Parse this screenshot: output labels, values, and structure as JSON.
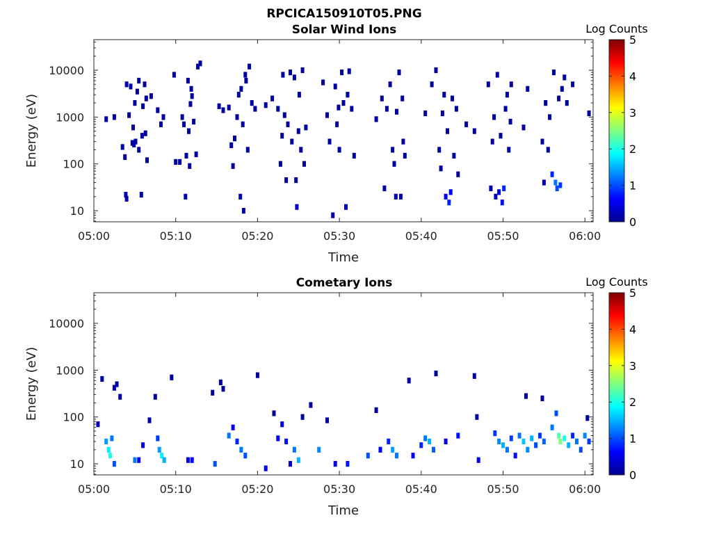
{
  "figure": {
    "title": "RPCICA150910T05.PNG"
  },
  "chart_data": [
    {
      "type": "heatmap",
      "title": "Solar Wind Ions",
      "xlabel": "Time",
      "ylabel": "Energy (eV)",
      "yscale": "log",
      "x_tick_labels": [
        "05:00",
        "05:10",
        "05:20",
        "05:30",
        "05:40",
        "05:50",
        "06:00"
      ],
      "y_tick_labels": [
        "10",
        "100",
        "1000",
        "10000"
      ],
      "colorbar": {
        "label": "Log Counts",
        "ticks": [
          "0",
          "1",
          "2",
          "3",
          "4",
          "5"
        ],
        "colormap": "jet",
        "range": [
          0,
          5
        ]
      },
      "cells": [
        [
          1.5,
          900,
          0.1
        ],
        [
          2.5,
          1000,
          0.1
        ],
        [
          3.5,
          230,
          0.1
        ],
        [
          3.8,
          140,
          0.1
        ],
        [
          3.9,
          22,
          0.2
        ],
        [
          4.0,
          18,
          0.1
        ],
        [
          4.0,
          5000,
          0.1
        ],
        [
          4.3,
          1100,
          0.1
        ],
        [
          4.5,
          4500,
          0.1
        ],
        [
          4.7,
          280,
          0.1
        ],
        [
          4.8,
          600,
          0.1
        ],
        [
          4.9,
          260,
          0.1
        ],
        [
          5.0,
          2000,
          0.1
        ],
        [
          5.1,
          300,
          0.1
        ],
        [
          5.3,
          3500,
          0.1
        ],
        [
          5.5,
          200,
          0.1
        ],
        [
          5.5,
          6000,
          0.1
        ],
        [
          5.8,
          22,
          0.2
        ],
        [
          5.9,
          400,
          0.1
        ],
        [
          6.0,
          1700,
          0.1
        ],
        [
          6.2,
          5000,
          0.1
        ],
        [
          6.3,
          450,
          0.1
        ],
        [
          6.4,
          2500,
          0.1
        ],
        [
          6.5,
          120,
          0.1
        ],
        [
          7.0,
          2800,
          0.1
        ],
        [
          7.8,
          1400,
          0.1
        ],
        [
          8.2,
          700,
          0.1
        ],
        [
          8.5,
          1000,
          0.1
        ],
        [
          9.8,
          8000,
          0.1
        ],
        [
          10.0,
          110,
          0.1
        ],
        [
          10.5,
          110,
          0.1
        ],
        [
          10.8,
          1000,
          0.1
        ],
        [
          11.0,
          700,
          0.1
        ],
        [
          11.2,
          20,
          0.2
        ],
        [
          11.3,
          150,
          0.1
        ],
        [
          11.5,
          6000,
          0.1
        ],
        [
          11.6,
          500,
          0.1
        ],
        [
          11.7,
          90,
          0.1
        ],
        [
          11.8,
          1900,
          0.1
        ],
        [
          11.9,
          4000,
          0.1
        ],
        [
          12.0,
          2800,
          0.1
        ],
        [
          12.2,
          800,
          0.1
        ],
        [
          12.5,
          160,
          0.1
        ],
        [
          12.7,
          12000,
          0.1
        ],
        [
          13.0,
          14000,
          0.1
        ],
        [
          15.3,
          1700,
          0.1
        ],
        [
          15.8,
          1400,
          0.1
        ],
        [
          16.5,
          1600,
          0.1
        ],
        [
          16.8,
          250,
          0.1
        ],
        [
          17.0,
          90,
          0.1
        ],
        [
          17.2,
          350,
          0.1
        ],
        [
          17.5,
          1000,
          0.1
        ],
        [
          17.7,
          3000,
          0.1
        ],
        [
          17.9,
          20,
          0.2
        ],
        [
          18.0,
          4000,
          0.1
        ],
        [
          18.2,
          700,
          0.1
        ],
        [
          18.3,
          10,
          0.2
        ],
        [
          18.5,
          8000,
          0.1
        ],
        [
          18.6,
          6000,
          0.1
        ],
        [
          18.8,
          200,
          0.1
        ],
        [
          19.0,
          12000,
          0.1
        ],
        [
          19.3,
          2000,
          0.1
        ],
        [
          19.7,
          1500,
          0.1
        ],
        [
          21.0,
          1800,
          0.1
        ],
        [
          21.8,
          2500,
          0.1
        ],
        [
          22.5,
          1500,
          0.1
        ],
        [
          22.8,
          100,
          0.1
        ],
        [
          23.0,
          400,
          0.1
        ],
        [
          23.1,
          8000,
          0.1
        ],
        [
          23.3,
          1100,
          0.1
        ],
        [
          23.5,
          45,
          0.1
        ],
        [
          23.7,
          700,
          0.1
        ],
        [
          24.0,
          9000,
          0.1
        ],
        [
          24.2,
          300,
          0.1
        ],
        [
          24.5,
          7000,
          0.1
        ],
        [
          24.7,
          45,
          0.1
        ],
        [
          24.8,
          12,
          0.3
        ],
        [
          25.0,
          500,
          0.1
        ],
        [
          25.1,
          3000,
          0.1
        ],
        [
          25.3,
          200,
          0.1
        ],
        [
          25.5,
          10000,
          0.1
        ],
        [
          25.7,
          100,
          0.1
        ],
        [
          25.9,
          600,
          0.1
        ],
        [
          28.0,
          5500,
          0.1
        ],
        [
          28.5,
          1100,
          0.1
        ],
        [
          28.8,
          300,
          0.1
        ],
        [
          29.2,
          8,
          0.2
        ],
        [
          29.5,
          4500,
          0.1
        ],
        [
          29.7,
          700,
          0.1
        ],
        [
          29.9,
          1600,
          0.1
        ],
        [
          30.0,
          200,
          0.1
        ],
        [
          30.3,
          9000,
          0.1
        ],
        [
          30.5,
          2000,
          0.1
        ],
        [
          30.8,
          12,
          0.3
        ],
        [
          31.0,
          3000,
          0.1
        ],
        [
          31.2,
          9500,
          0.1
        ],
        [
          31.5,
          1500,
          0.1
        ],
        [
          31.8,
          150,
          0.1
        ],
        [
          34.5,
          900,
          0.1
        ],
        [
          35.2,
          2500,
          0.1
        ],
        [
          35.5,
          30,
          0.1
        ],
        [
          35.8,
          1500,
          0.1
        ],
        [
          36.2,
          5000,
          0.1
        ],
        [
          36.5,
          200,
          0.1
        ],
        [
          36.7,
          100,
          0.1
        ],
        [
          36.9,
          20,
          0.2
        ],
        [
          37.0,
          1300,
          0.1
        ],
        [
          37.3,
          9000,
          0.1
        ],
        [
          37.5,
          20,
          0.2
        ],
        [
          37.7,
          2500,
          0.1
        ],
        [
          37.8,
          300,
          0.1
        ],
        [
          38.0,
          150,
          0.1
        ],
        [
          40.5,
          1200,
          0.1
        ],
        [
          41.3,
          5000,
          0.1
        ],
        [
          41.8,
          10000,
          0.1
        ],
        [
          42.2,
          200,
          0.1
        ],
        [
          42.4,
          80,
          0.1
        ],
        [
          42.6,
          1200,
          0.1
        ],
        [
          42.8,
          3000,
          0.1
        ],
        [
          43.0,
          20,
          0.6
        ],
        [
          43.2,
          500,
          0.1
        ],
        [
          43.4,
          15,
          0.8
        ],
        [
          43.6,
          25,
          0.6
        ],
        [
          43.8,
          2500,
          0.1
        ],
        [
          44.0,
          150,
          0.1
        ],
        [
          44.3,
          1500,
          0.1
        ],
        [
          44.5,
          60,
          0.1
        ],
        [
          45.5,
          700,
          0.1
        ],
        [
          46.5,
          500,
          0.1
        ],
        [
          48.2,
          5000,
          0.1
        ],
        [
          48.5,
          30,
          0.2
        ],
        [
          48.7,
          300,
          0.1
        ],
        [
          48.9,
          1000,
          0.1
        ],
        [
          49.1,
          20,
          0.2
        ],
        [
          49.3,
          8000,
          0.1
        ],
        [
          49.5,
          25,
          0.5
        ],
        [
          49.7,
          400,
          0.1
        ],
        [
          49.9,
          15,
          0.7
        ],
        [
          50.1,
          30,
          0.8
        ],
        [
          50.3,
          1500,
          0.1
        ],
        [
          50.5,
          3000,
          0.1
        ],
        [
          50.7,
          200,
          0.1
        ],
        [
          50.9,
          800,
          0.1
        ],
        [
          51.0,
          5000,
          0.1
        ],
        [
          52.5,
          600,
          0.1
        ],
        [
          53.0,
          4000,
          0.1
        ],
        [
          54.8,
          300,
          0.1
        ],
        [
          55.0,
          40,
          0.2
        ],
        [
          55.2,
          2000,
          0.1
        ],
        [
          55.5,
          200,
          0.1
        ],
        [
          55.7,
          1000,
          0.1
        ],
        [
          56.0,
          60,
          0.8
        ],
        [
          56.2,
          9000,
          0.1
        ],
        [
          56.4,
          40,
          1.2
        ],
        [
          56.6,
          30,
          1.0
        ],
        [
          56.8,
          2500,
          0.1
        ],
        [
          57.0,
          35,
          0.9
        ],
        [
          57.2,
          4000,
          0.1
        ],
        [
          57.5,
          7000,
          0.1
        ],
        [
          57.8,
          2000,
          0.1
        ],
        [
          58.5,
          5000,
          0.1
        ],
        [
          60.5,
          1200,
          0.1
        ]
      ]
    },
    {
      "type": "heatmap",
      "title": "Cometary Ions",
      "xlabel": "Time",
      "ylabel": "Energy (eV)",
      "yscale": "log",
      "x_tick_labels": [
        "05:00",
        "05:10",
        "05:20",
        "05:30",
        "05:40",
        "05:50",
        "06:00"
      ],
      "y_tick_labels": [
        "10",
        "100",
        "1000",
        "10000"
      ],
      "colorbar": {
        "label": "Log Counts",
        "ticks": [
          "0",
          "1",
          "2",
          "3",
          "4",
          "5"
        ],
        "colormap": "jet",
        "range": [
          0,
          5
        ]
      },
      "cells": [
        [
          0.5,
          70,
          0.2
        ],
        [
          1.0,
          650,
          0.1
        ],
        [
          1.5,
          30,
          1.4
        ],
        [
          1.8,
          20,
          1.8
        ],
        [
          2.0,
          15,
          2.0
        ],
        [
          2.2,
          35,
          1.2
        ],
        [
          2.5,
          10,
          1.0
        ],
        [
          2.5,
          420,
          0.1
        ],
        [
          2.8,
          500,
          0.1
        ],
        [
          3.2,
          270,
          0.1
        ],
        [
          5.0,
          12,
          1.2
        ],
        [
          5.5,
          12,
          0.6
        ],
        [
          6.0,
          25,
          0.5
        ],
        [
          6.8,
          85,
          0.1
        ],
        [
          7.5,
          270,
          0.1
        ],
        [
          7.8,
          35,
          0.9
        ],
        [
          8.0,
          20,
          1.4
        ],
        [
          8.3,
          15,
          1.8
        ],
        [
          8.6,
          12,
          1.5
        ],
        [
          9.5,
          700,
          0.1
        ],
        [
          11.5,
          12,
          0.4
        ],
        [
          12.0,
          12,
          0.6
        ],
        [
          14.5,
          330,
          0.1
        ],
        [
          14.8,
          10,
          1.0
        ],
        [
          15.5,
          550,
          0.1
        ],
        [
          15.8,
          400,
          0.1
        ],
        [
          16.5,
          40,
          1.2
        ],
        [
          17.0,
          60,
          0.6
        ],
        [
          17.5,
          30,
          0.8
        ],
        [
          18.0,
          20,
          1.2
        ],
        [
          18.5,
          15,
          1.0
        ],
        [
          20.0,
          780,
          0.1
        ],
        [
          21.0,
          8,
          0.5
        ],
        [
          22.0,
          120,
          0.1
        ],
        [
          22.5,
          35,
          0.6
        ],
        [
          23.0,
          70,
          0.5
        ],
        [
          23.5,
          30,
          0.7
        ],
        [
          24.0,
          10,
          0.4
        ],
        [
          24.5,
          20,
          1.2
        ],
        [
          25.0,
          12,
          1.5
        ],
        [
          25.5,
          100,
          0.1
        ],
        [
          26.5,
          180,
          0.1
        ],
        [
          27.5,
          20,
          1.3
        ],
        [
          28.5,
          85,
          0.1
        ],
        [
          29.5,
          10,
          0.5
        ],
        [
          31.0,
          10,
          0.7
        ],
        [
          33.5,
          15,
          1.0
        ],
        [
          34.5,
          140,
          0.1
        ],
        [
          35.0,
          20,
          0.6
        ],
        [
          36.0,
          30,
          0.8
        ],
        [
          36.5,
          20,
          1.4
        ],
        [
          37.0,
          15,
          1.2
        ],
        [
          38.5,
          600,
          0.1
        ],
        [
          39.0,
          15,
          0.6
        ],
        [
          40.0,
          25,
          0.8
        ],
        [
          40.5,
          35,
          1.2
        ],
        [
          41.0,
          30,
          1.5
        ],
        [
          41.5,
          20,
          1.1
        ],
        [
          41.8,
          850,
          0.1
        ],
        [
          43.0,
          30,
          0.5
        ],
        [
          44.5,
          40,
          0.7
        ],
        [
          46.5,
          750,
          0.1
        ],
        [
          46.8,
          100,
          0.1
        ],
        [
          47.0,
          12,
          0.5
        ],
        [
          49.0,
          45,
          0.9
        ],
        [
          49.5,
          30,
          1.3
        ],
        [
          50.0,
          25,
          1.5
        ],
        [
          50.5,
          20,
          1.2
        ],
        [
          51.0,
          35,
          0.9
        ],
        [
          51.5,
          15,
          0.7
        ],
        [
          52.0,
          40,
          1.2
        ],
        [
          52.5,
          30,
          1.6
        ],
        [
          52.8,
          280,
          0.1
        ],
        [
          53.0,
          20,
          1.3
        ],
        [
          53.5,
          35,
          1.5
        ],
        [
          54.0,
          25,
          1.0
        ],
        [
          54.5,
          40,
          0.9
        ],
        [
          54.8,
          250,
          0.1
        ],
        [
          55.0,
          30,
          1.1
        ],
        [
          56.0,
          60,
          1.2
        ],
        [
          56.5,
          120,
          1.0
        ],
        [
          56.8,
          40,
          2.3
        ],
        [
          57.0,
          30,
          2.5
        ],
        [
          57.5,
          35,
          2.0
        ],
        [
          58.0,
          25,
          1.5
        ],
        [
          58.5,
          40,
          0.8
        ],
        [
          59.0,
          30,
          1.2
        ],
        [
          59.5,
          20,
          1.0
        ],
        [
          60.0,
          40,
          1.3
        ],
        [
          60.3,
          95,
          0.1
        ],
        [
          60.5,
          30,
          0.9
        ]
      ]
    }
  ]
}
